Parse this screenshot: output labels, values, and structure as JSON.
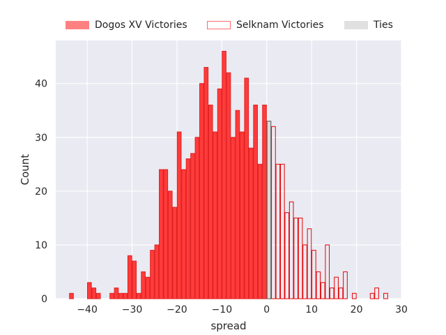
{
  "colors": {
    "background": "#eaeaf2",
    "grid": "#ffffff",
    "dogos": "#ff3b3b",
    "dogos_edge": "#e02020",
    "selknam_edge": "#e60000",
    "ties_fill": "#d9d9d9",
    "ties_edge": "#555555",
    "legend_dogos": "#ff8080",
    "legend_selknam_edge": "#ff6b6b",
    "legend_ties": "#e0e0e0"
  },
  "legend": {
    "dogos": "Dogos XV Victories",
    "selknam": "Selknam Victories",
    "ties": "Ties"
  },
  "chart_data": {
    "type": "bar",
    "title": "",
    "xlabel": "spread",
    "ylabel": "Count",
    "xlim": [
      -47,
      30
    ],
    "ylim": [
      0,
      48
    ],
    "xticks": [
      -40,
      -30,
      -20,
      -10,
      0,
      10,
      20,
      30
    ],
    "yticks": [
      0,
      10,
      20,
      30,
      40
    ],
    "grid": true,
    "legend_position": "top",
    "bin_width": 1,
    "series": [
      {
        "name": "Dogos XV Victories",
        "style": "filled",
        "x": [
          -44,
          -43,
          -42,
          -41,
          -40,
          -39,
          -38,
          -37,
          -36,
          -35,
          -34,
          -33,
          -32,
          -31,
          -30,
          -29,
          -28,
          -27,
          -26,
          -25,
          -24,
          -23,
          -22,
          -21,
          -20,
          -19,
          -18,
          -17,
          -16,
          -15,
          -14,
          -13,
          -12,
          -11,
          -10,
          -9,
          -8,
          -7,
          -6,
          -5,
          -4,
          -3,
          -2,
          -1
        ],
        "values": [
          1,
          0,
          0,
          0,
          3,
          2,
          1,
          0,
          0,
          1,
          2,
          1,
          1,
          8,
          7,
          1,
          5,
          4,
          9,
          10,
          24,
          24,
          20,
          17,
          31,
          24,
          26,
          27,
          30,
          40,
          43,
          36,
          31,
          39,
          46,
          42,
          30,
          35,
          31,
          41,
          28,
          36,
          25,
          36
        ]
      },
      {
        "name": "Selknam Victories",
        "style": "outline",
        "x": [
          1,
          2,
          3,
          4,
          5,
          6,
          7,
          8,
          9,
          10,
          11,
          12,
          13,
          14,
          15,
          16,
          17,
          18,
          19,
          20,
          21,
          22,
          23,
          24,
          25,
          26
        ],
        "values": [
          32,
          25,
          25,
          16,
          18,
          15,
          15,
          10,
          13,
          9,
          5,
          3,
          10,
          2,
          4,
          2,
          5,
          0,
          1,
          0,
          0,
          0,
          1,
          2,
          0,
          1
        ]
      },
      {
        "name": "Ties",
        "style": "filled",
        "x": [
          0
        ],
        "values": [
          33
        ]
      }
    ]
  }
}
